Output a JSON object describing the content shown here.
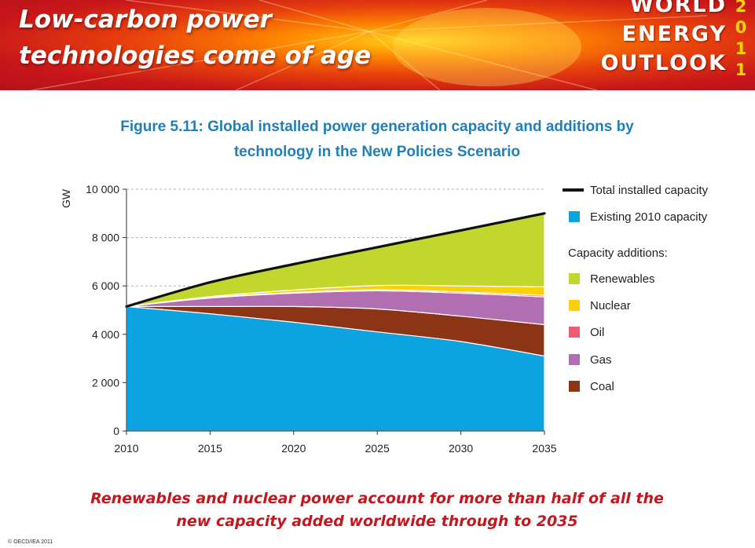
{
  "banner": {
    "title": "Low-carbon power technologies come of age",
    "brand_lines": [
      "WORLD",
      "ENERGY",
      "OUTLOOK"
    ],
    "year_digits": [
      "2",
      "0",
      "1",
      "1"
    ]
  },
  "figure_title": "Figure 5.11: Global installed power generation capacity and additions by technology in the New Policies Scenario",
  "caption": "Renewables and nuclear power account for more than half of all the new capacity added worldwide through to 2035",
  "copyright": "© OECD/IEA 2011",
  "colors": {
    "banner_red": "#c8161a",
    "title_blue": "#1f7fb8",
    "caption_red": "#c4161c",
    "year_yellow": "#ffd400"
  },
  "legend": {
    "total_label": "Total installed capacity",
    "existing_label": "Existing 2010 capacity",
    "additions_heading": "Capacity additions:",
    "items": [
      {
        "label": "Renewables",
        "color": "#c1d72e"
      },
      {
        "label": "Nuclear",
        "color": "#fccf0b"
      },
      {
        "label": "Oil",
        "color": "#ef5b73"
      },
      {
        "label": "Gas",
        "color": "#b16fb2"
      },
      {
        "label": "Coal",
        "color": "#8b3416"
      }
    ]
  },
  "chart_data": {
    "type": "area",
    "stacked": true,
    "ylabel": "GW",
    "xlabel": "",
    "x": [
      2010,
      2015,
      2020,
      2025,
      2030,
      2035
    ],
    "x_ticks": [
      "2010",
      "2015",
      "2020",
      "2025",
      "2030",
      "2035"
    ],
    "ylim": [
      0,
      10000
    ],
    "y_ticks": [
      0,
      2000,
      4000,
      6000,
      8000,
      10000
    ],
    "y_tick_labels": [
      "0",
      "2 000",
      "4 000",
      "6 000",
      "8 000",
      "10 000"
    ],
    "grid": "horizontal dashed",
    "legend_position": "right",
    "series": [
      {
        "name": "Existing 2010 capacity",
        "color": "#0da2e0",
        "values": [
          5150,
          4850,
          4500,
          4100,
          3700,
          3100
        ]
      },
      {
        "name": "Coal",
        "color": "#8b3416",
        "values": [
          0,
          300,
          650,
          950,
          1050,
          1300
        ]
      },
      {
        "name": "Gas",
        "color": "#b16fb2",
        "values": [
          0,
          350,
          550,
          750,
          950,
          1150
        ]
      },
      {
        "name": "Oil",
        "color": "#ef5b73",
        "values": [
          0,
          20,
          30,
          40,
          50,
          60
        ]
      },
      {
        "name": "Nuclear",
        "color": "#fccf0b",
        "values": [
          0,
          40,
          100,
          180,
          250,
          350
        ]
      },
      {
        "name": "Renewables",
        "color": "#c1d72e",
        "values": [
          0,
          590,
          1070,
          1580,
          2300,
          3040
        ]
      }
    ],
    "total": {
      "name": "Total installed capacity",
      "color": "#111111",
      "values": [
        5150,
        6150,
        6900,
        7600,
        8300,
        9000
      ]
    }
  }
}
